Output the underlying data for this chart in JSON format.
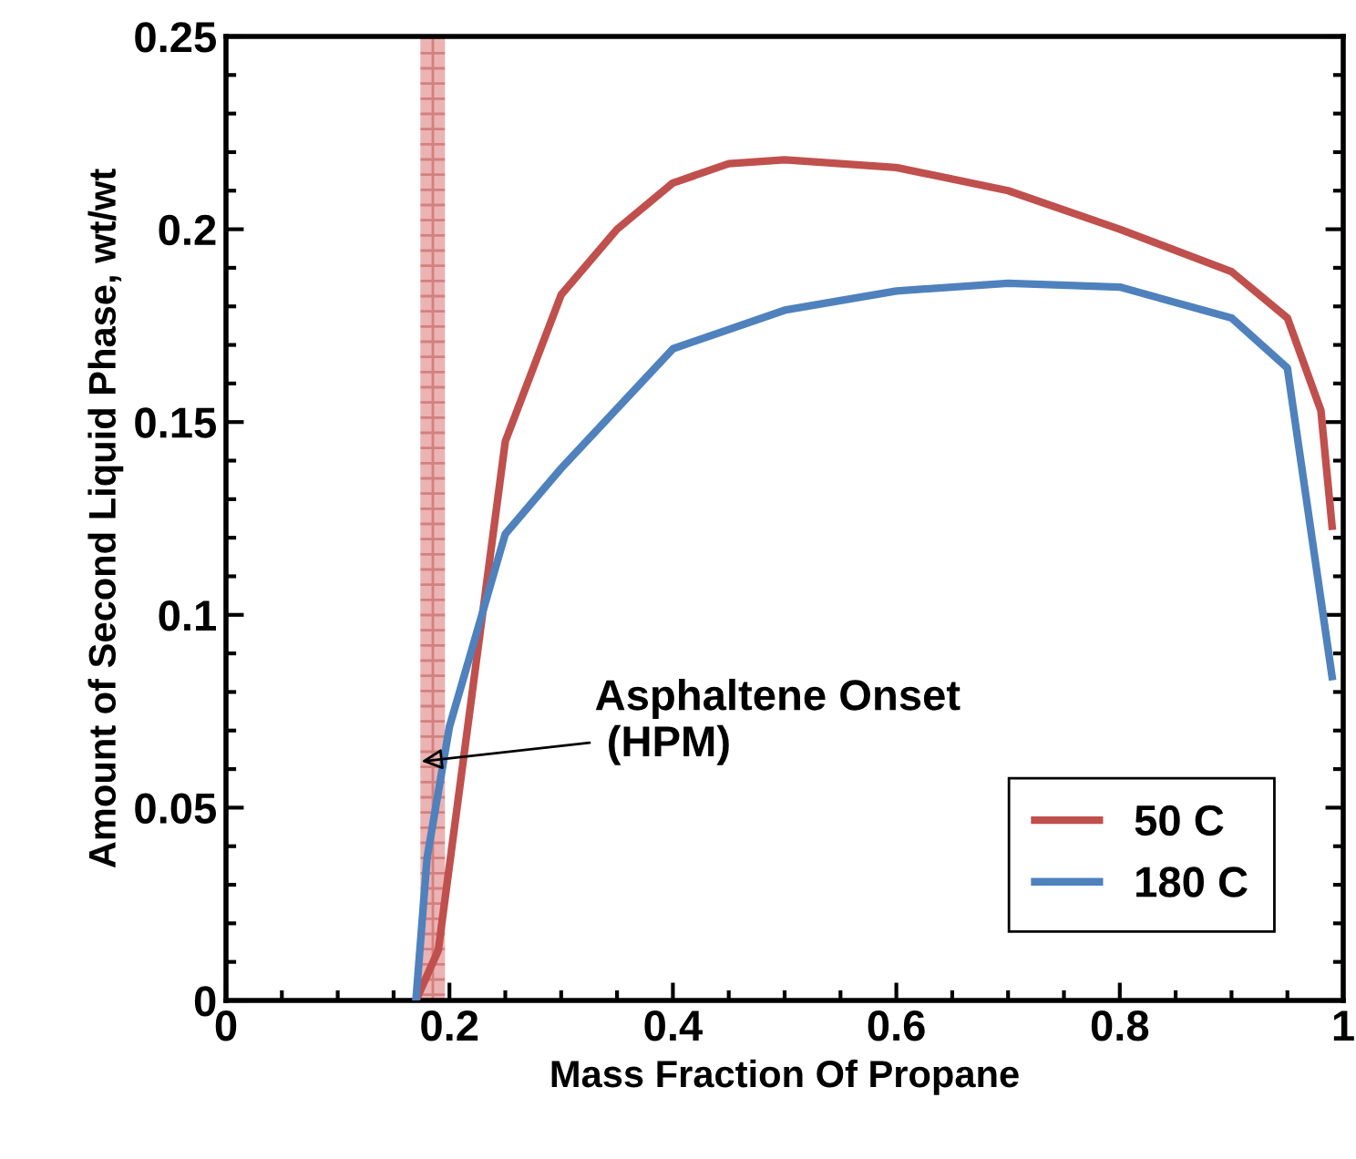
{
  "chart_data": {
    "type": "line",
    "xlabel": "Mass Fraction Of Propane",
    "ylabel": "Amount of Second Liquid Phase, wt/wt",
    "xlim": [
      0,
      1
    ],
    "ylim": [
      0,
      0.25
    ],
    "xticks": [
      0,
      0.2,
      0.4,
      0.6,
      0.8,
      1
    ],
    "yticks": [
      0,
      0.05,
      0.1,
      0.15,
      0.2,
      0.25
    ],
    "grid": false,
    "legend": "bottom right",
    "marker": "none",
    "line_style": "solid",
    "series": [
      {
        "name": "50 C",
        "color": "#c0504d",
        "x": [
          0.17,
          0.19,
          0.25,
          0.3,
          0.35,
          0.4,
          0.45,
          0.5,
          0.6,
          0.7,
          0.8,
          0.9,
          0.95,
          0.98,
          0.99
        ],
        "values": [
          0,
          0.013,
          0.145,
          0.183,
          0.2,
          0.212,
          0.217,
          0.218,
          0.216,
          0.21,
          0.2,
          0.189,
          0.177,
          0.153,
          0.123
        ]
      },
      {
        "name": "180 C",
        "color": "#4f81bd",
        "x": [
          0.17,
          0.18,
          0.2,
          0.25,
          0.3,
          0.4,
          0.5,
          0.6,
          0.7,
          0.8,
          0.9,
          0.95,
          0.99
        ],
        "values": [
          0,
          0.037,
          0.071,
          0.121,
          0.138,
          0.169,
          0.179,
          0.184,
          0.186,
          0.185,
          0.177,
          0.164,
          0.084
        ]
      }
    ],
    "bands": [
      {
        "axis": "x",
        "from": 0.174,
        "to": 0.196,
        "color": "#e6a0a0"
      }
    ],
    "annotations": [
      {
        "text": "Asphaltene Onset\n (HPM)",
        "x": 0.175,
        "y": 0.062
      }
    ]
  }
}
